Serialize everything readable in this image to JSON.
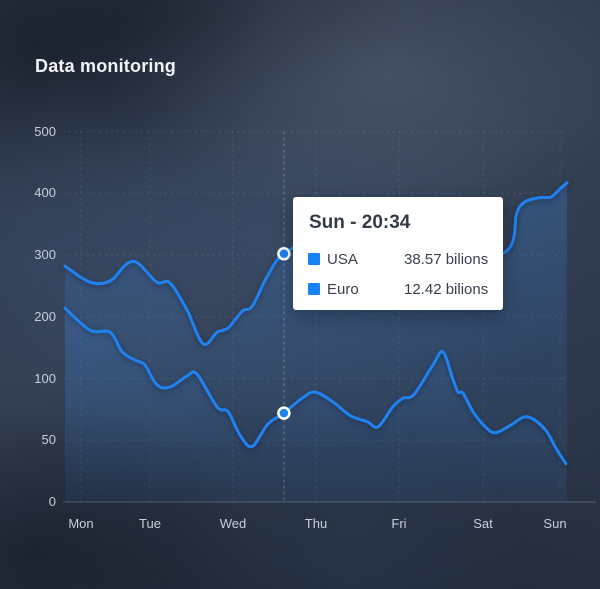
{
  "header": {
    "title": "Data monitoring"
  },
  "tooltip": {
    "title": "Sun - 20:34",
    "rows": [
      {
        "label": "USA",
        "value": "38.57 bilions"
      },
      {
        "label": "Euro",
        "value": "12.42 bilions"
      }
    ]
  },
  "colors": {
    "line": "#2082ef",
    "area": "#3b82d8",
    "swatch": "#1583f7",
    "grid": "rgba(198,210,228,0.14)",
    "axis_line": "rgba(198,210,228,0.30)",
    "hover_line": "rgba(212,224,240,0.35)",
    "axis_label": "#c6ceda",
    "dot_stroke": "#ffffff"
  },
  "chart_data": {
    "type": "area",
    "title": "Data monitoring",
    "x_labels": [
      "Mon",
      "Tue",
      "Wed",
      "Thu",
      "Fri",
      "Sat",
      "Sun"
    ],
    "y_ticks": [
      0,
      50,
      100,
      200,
      300,
      400,
      500
    ],
    "grid": true,
    "legend_position": "tooltip",
    "hover": {
      "t": 0.436,
      "label": "Sun - 20:34",
      "values": [
        302,
        72
      ]
    },
    "series": [
      {
        "name": "USA",
        "points": [
          [
            0,
            282
          ],
          [
            0.05,
            256
          ],
          [
            0.09,
            258
          ],
          [
            0.122,
            285
          ],
          [
            0.145,
            287
          ],
          [
            0.183,
            256
          ],
          [
            0.209,
            255
          ],
          [
            0.243,
            211
          ],
          [
            0.275,
            156
          ],
          [
            0.303,
            175
          ],
          [
            0.325,
            182
          ],
          [
            0.353,
            209
          ],
          [
            0.373,
            217
          ],
          [
            0.402,
            264
          ],
          [
            0.436,
            302
          ],
          [
            0.508,
            324
          ],
          [
            0.627,
            295
          ],
          [
            0.747,
            289
          ],
          [
            0.877,
            305
          ],
          [
            0.9,
            368
          ],
          [
            0.916,
            386
          ],
          [
            0.946,
            393
          ],
          [
            0.968,
            394
          ],
          [
            0.986,
            407
          ],
          [
            1,
            417
          ]
        ]
      },
      {
        "name": "Euro",
        "points": [
          [
            0,
            214
          ],
          [
            0.05,
            178
          ],
          [
            0.09,
            175
          ],
          [
            0.114,
            143
          ],
          [
            0.139,
            130
          ],
          [
            0.159,
            122
          ],
          [
            0.183,
            95
          ],
          [
            0.209,
            93
          ],
          [
            0.243,
            104
          ],
          [
            0.263,
            107
          ],
          [
            0.303,
            77
          ],
          [
            0.325,
            73
          ],
          [
            0.349,
            54
          ],
          [
            0.373,
            45
          ],
          [
            0.404,
            63
          ],
          [
            0.436,
            72
          ],
          [
            0.472,
            84
          ],
          [
            0.498,
            89
          ],
          [
            0.534,
            81
          ],
          [
            0.568,
            70
          ],
          [
            0.602,
            65
          ],
          [
            0.624,
            61
          ],
          [
            0.653,
            77
          ],
          [
            0.673,
            84
          ],
          [
            0.695,
            87
          ],
          [
            0.733,
            122
          ],
          [
            0.753,
            143
          ],
          [
            0.773,
            99
          ],
          [
            0.783,
            89
          ],
          [
            0.793,
            88
          ],
          [
            0.813,
            73
          ],
          [
            0.837,
            61
          ],
          [
            0.857,
            56
          ],
          [
            0.887,
            62
          ],
          [
            0.92,
            69
          ],
          [
            0.956,
            59
          ],
          [
            0.98,
            42
          ],
          [
            0.998,
            31
          ]
        ]
      }
    ]
  }
}
